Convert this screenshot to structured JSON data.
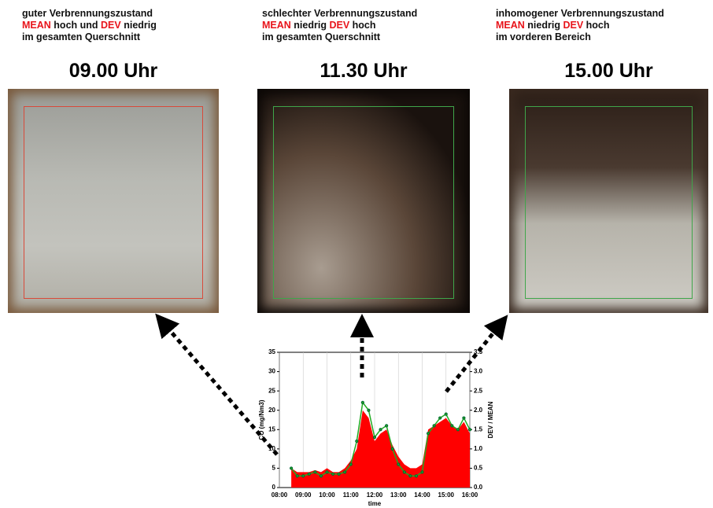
{
  "panels": [
    {
      "line1": "guter Verbrennungszustand",
      "line2": [
        "MEAN",
        "hoch und",
        "DEV",
        "niedrig"
      ],
      "line3": "im gesamten Querschnitt",
      "time": "09.00 Uhr"
    },
    {
      "line1": "schlechter Verbrennungszustand",
      "line2": [
        "MEAN",
        "niedrig",
        "DEV",
        "hoch"
      ],
      "line3": "im gesamten Querschnitt",
      "time": "11.30 Uhr"
    },
    {
      "line1": "inhomogener Verbrennungszustand",
      "line2": [
        "MEAN",
        "niedrig",
        "DEV",
        "hoch"
      ],
      "line3": "im vorderen Bereich",
      "time": "15.00 Uhr"
    }
  ],
  "chart_data": {
    "type": "area",
    "xlabel": "time",
    "ylabel": "CO (mg/Nm3)",
    "y2label": "DEV / MEAN",
    "x": [
      8.5,
      8.75,
      9,
      9.25,
      9.5,
      9.75,
      10,
      10.25,
      10.5,
      10.75,
      11,
      11.25,
      11.5,
      11.75,
      12,
      12.25,
      12.5,
      12.75,
      13,
      13.25,
      13.5,
      13.75,
      14,
      14.25,
      14.5,
      14.75,
      15,
      15.25,
      15.5,
      15.75,
      16
    ],
    "series": [
      {
        "color": "#ff0000",
        "values": [
          5,
          4,
          4,
          4,
          4.5,
          4,
          5,
          4,
          4,
          5,
          7,
          10,
          20,
          18,
          12,
          14,
          15,
          11,
          8,
          6,
          5,
          5,
          6,
          15,
          16,
          17,
          18,
          16,
          15,
          17,
          14
        ]
      },
      {
        "color": "#22aa22",
        "axis": "y2",
        "values": [
          0.5,
          0.3,
          0.3,
          0.35,
          0.4,
          0.3,
          0.4,
          0.35,
          0.35,
          0.4,
          0.6,
          1.2,
          2.2,
          2.0,
          1.3,
          1.5,
          1.6,
          1.0,
          0.6,
          0.4,
          0.3,
          0.3,
          0.4,
          1.4,
          1.6,
          1.8,
          1.9,
          1.6,
          1.5,
          1.8,
          1.5
        ]
      }
    ],
    "xlim": [
      8,
      16
    ],
    "xticks": [
      {
        "value": 8,
        "label": "08:00"
      },
      {
        "value": 9,
        "label": "09:00"
      },
      {
        "value": 10,
        "label": "10:00"
      },
      {
        "value": 11,
        "label": "11:00"
      },
      {
        "value": 12,
        "label": "12:00"
      },
      {
        "value": 13,
        "label": "13:00"
      },
      {
        "value": 14,
        "label": "14:00"
      },
      {
        "value": 15,
        "label": "15:00"
      },
      {
        "value": 16,
        "label": "16:00"
      }
    ],
    "ylim": [
      0,
      35
    ],
    "yticks": [
      0,
      5,
      10,
      15,
      20,
      25,
      30,
      35
    ],
    "y2lim": [
      0,
      3.5
    ],
    "y2ticks": [
      {
        "value": 0,
        "label": "0.0"
      },
      {
        "value": 0.5,
        "label": "0.5"
      },
      {
        "value": 1,
        "label": "1.0"
      },
      {
        "value": 1.5,
        "label": "1.5"
      },
      {
        "value": 2,
        "label": "2.0"
      },
      {
        "value": 2.5,
        "label": "2.5"
      },
      {
        "value": 3,
        "label": "3.0"
      },
      {
        "value": 3.5,
        "label": "3.5"
      }
    ],
    "grid": true
  }
}
